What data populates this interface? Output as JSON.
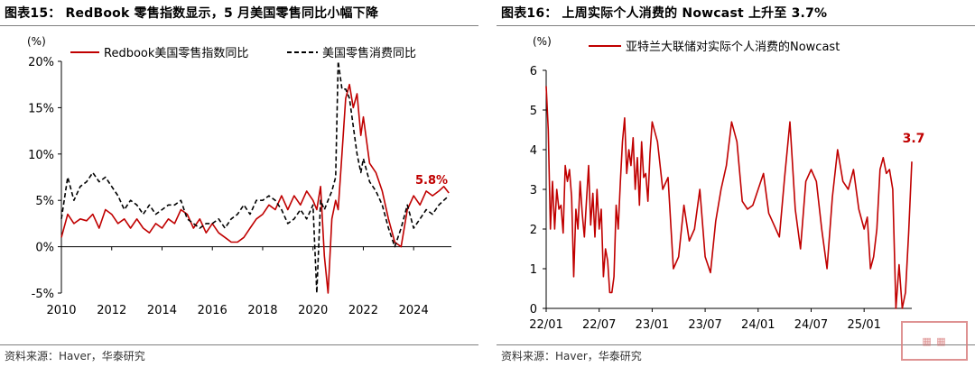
{
  "left": {
    "title": "图表15：  RedBook 零售指数显示，5 月美国零售同比小幅下降",
    "source": "资料来源：Haver，华泰研究"
  },
  "right": {
    "title": "图表16：  上周实际个人消费的 Nowcast 上升至 3.7%",
    "source": "资料来源：Haver，华泰研究"
  },
  "watermark_text": "慧博",
  "chart_data": [
    {
      "type": "line",
      "unit_label": "(%)",
      "ylim": [
        -5,
        20
      ],
      "yticks": [
        "-5%",
        "0%",
        "5%",
        "10%",
        "15%",
        "20%"
      ],
      "xlim": [
        2010,
        2025.5
      ],
      "xticks": [
        "2010",
        "2012",
        "2014",
        "2016",
        "2018",
        "2020",
        "2022",
        "2024"
      ],
      "legend_position": "top",
      "end_label": "5.8%",
      "colors": {
        "redbook": "#c00000",
        "retail": "#000000",
        "end_label": "#c00000"
      },
      "series": [
        {
          "name": "Redbook美国零售指数同比",
          "style": "solid",
          "x": [
            2010.0,
            2010.25,
            2010.5,
            2010.75,
            2011.0,
            2011.25,
            2011.5,
            2011.75,
            2012.0,
            2012.25,
            2012.5,
            2012.75,
            2013.0,
            2013.25,
            2013.5,
            2013.75,
            2014.0,
            2014.25,
            2014.5,
            2014.75,
            2015.0,
            2015.25,
            2015.5,
            2015.75,
            2016.0,
            2016.25,
            2016.5,
            2016.75,
            2017.0,
            2017.25,
            2017.5,
            2017.75,
            2018.0,
            2018.25,
            2018.5,
            2018.75,
            2019.0,
            2019.25,
            2019.5,
            2019.75,
            2020.0,
            2020.15,
            2020.3,
            2020.45,
            2020.6,
            2020.75,
            2020.9,
            2021.0,
            2021.15,
            2021.3,
            2021.45,
            2021.6,
            2021.75,
            2021.9,
            2022.0,
            2022.25,
            2022.5,
            2022.75,
            2023.0,
            2023.25,
            2023.5,
            2023.75,
            2024.0,
            2024.25,
            2024.5,
            2024.75,
            2025.0,
            2025.2,
            2025.4
          ],
          "values": [
            1.0,
            3.5,
            2.5,
            3.0,
            2.8,
            3.5,
            2.0,
            4.0,
            3.5,
            2.5,
            3.0,
            2.0,
            3.0,
            2.0,
            1.5,
            2.5,
            2.0,
            3.0,
            2.5,
            4.0,
            3.5,
            2.0,
            3.0,
            1.5,
            2.5,
            1.5,
            1.0,
            0.5,
            0.5,
            1.0,
            2.0,
            3.0,
            3.5,
            4.5,
            4.0,
            5.5,
            4.0,
            5.5,
            4.5,
            6.0,
            5.0,
            4.0,
            6.5,
            -1.0,
            -5.0,
            3.0,
            5.0,
            4.0,
            10.0,
            16.0,
            17.5,
            15.0,
            16.5,
            12.0,
            14.0,
            9.0,
            8.0,
            6.0,
            3.0,
            0.5,
            0.0,
            4.0,
            5.5,
            4.5,
            6.0,
            5.5,
            6.0,
            6.5,
            5.8
          ]
        },
        {
          "name": "美国零售消费同比",
          "style": "dashed",
          "x": [
            2010.0,
            2010.25,
            2010.5,
            2010.75,
            2011.0,
            2011.25,
            2011.5,
            2011.75,
            2012.0,
            2012.25,
            2012.5,
            2012.75,
            2013.0,
            2013.25,
            2013.5,
            2013.75,
            2014.0,
            2014.25,
            2014.5,
            2014.75,
            2015.0,
            2015.25,
            2015.5,
            2015.75,
            2016.0,
            2016.25,
            2016.5,
            2016.75,
            2017.0,
            2017.25,
            2017.5,
            2017.75,
            2018.0,
            2018.25,
            2018.5,
            2018.75,
            2019.0,
            2019.25,
            2019.5,
            2019.75,
            2020.0,
            2020.15,
            2020.3,
            2020.45,
            2020.6,
            2020.75,
            2020.9,
            2021.0,
            2021.15,
            2021.3,
            2021.45,
            2021.6,
            2021.75,
            2021.9,
            2022.0,
            2022.25,
            2022.5,
            2022.75,
            2023.0,
            2023.25,
            2023.5,
            2023.75,
            2024.0,
            2024.25,
            2024.5,
            2024.75,
            2025.0,
            2025.2,
            2025.4
          ],
          "values": [
            3.0,
            7.5,
            5.0,
            6.5,
            7.0,
            8.0,
            7.0,
            7.5,
            6.5,
            5.5,
            4.0,
            5.0,
            4.5,
            3.5,
            4.5,
            3.5,
            4.0,
            4.5,
            4.5,
            5.0,
            3.0,
            2.5,
            2.0,
            2.5,
            2.5,
            3.0,
            2.0,
            3.0,
            3.5,
            4.5,
            3.5,
            5.0,
            5.0,
            5.5,
            5.0,
            4.0,
            2.5,
            3.0,
            4.0,
            3.0,
            4.5,
            -5.0,
            5.0,
            4.0,
            5.0,
            6.0,
            7.5,
            20.0,
            17.0,
            17.0,
            16.0,
            13.0,
            10.0,
            8.0,
            9.5,
            7.0,
            6.0,
            4.5,
            2.0,
            0.0,
            2.0,
            4.5,
            2.0,
            3.0,
            4.0,
            3.5,
            4.5,
            5.0,
            5.5
          ]
        }
      ]
    },
    {
      "type": "line",
      "unit_label": "(%)",
      "ylim": [
        0,
        6
      ],
      "yticks": [
        "0",
        "1",
        "2",
        "3",
        "4",
        "5",
        "6"
      ],
      "xlim": [
        2022.0,
        2025.45
      ],
      "xticks": [
        "22/01",
        "22/07",
        "23/01",
        "23/07",
        "24/01",
        "24/07",
        "25/01"
      ],
      "legend_position": "top",
      "end_label": "3.7",
      "colors": {
        "nowcast": "#c00000",
        "end_label": "#c00000"
      },
      "series": [
        {
          "name": "亚特兰大联储对实际个人消费的Nowcast",
          "style": "solid",
          "x": [
            2022.0,
            2022.02,
            2022.04,
            2022.06,
            2022.08,
            2022.1,
            2022.12,
            2022.14,
            2022.16,
            2022.18,
            2022.2,
            2022.22,
            2022.24,
            2022.26,
            2022.28,
            2022.3,
            2022.32,
            2022.34,
            2022.36,
            2022.38,
            2022.4,
            2022.42,
            2022.44,
            2022.46,
            2022.48,
            2022.5,
            2022.52,
            2022.54,
            2022.56,
            2022.58,
            2022.6,
            2022.62,
            2022.64,
            2022.66,
            2022.68,
            2022.7,
            2022.72,
            2022.74,
            2022.76,
            2022.78,
            2022.8,
            2022.82,
            2022.84,
            2022.86,
            2022.88,
            2022.9,
            2022.92,
            2022.94,
            2022.96,
            2022.98,
            2023.0,
            2023.05,
            2023.1,
            2023.15,
            2023.2,
            2023.25,
            2023.3,
            2023.35,
            2023.4,
            2023.45,
            2023.5,
            2023.55,
            2023.6,
            2023.65,
            2023.7,
            2023.75,
            2023.8,
            2023.85,
            2023.9,
            2023.95,
            2024.0,
            2024.05,
            2024.1,
            2024.15,
            2024.2,
            2024.25,
            2024.3,
            2024.35,
            2024.4,
            2024.45,
            2024.5,
            2024.55,
            2024.6,
            2024.65,
            2024.7,
            2024.75,
            2024.8,
            2024.85,
            2024.9,
            2024.95,
            2025.0,
            2025.03,
            2025.06,
            2025.09,
            2025.12,
            2025.15,
            2025.18,
            2025.21,
            2025.24,
            2025.27,
            2025.3,
            2025.33,
            2025.36,
            2025.39,
            2025.42,
            2025.45
          ],
          "values": [
            5.6,
            4.5,
            2.0,
            3.2,
            2.0,
            3.0,
            2.5,
            2.6,
            1.9,
            3.6,
            3.2,
            3.5,
            2.8,
            0.8,
            2.5,
            2.0,
            3.2,
            2.4,
            1.8,
            2.7,
            3.6,
            2.1,
            2.9,
            1.8,
            3.0,
            2.0,
            2.5,
            0.8,
            1.5,
            1.2,
            0.4,
            0.4,
            0.8,
            2.6,
            2.0,
            3.2,
            4.2,
            4.8,
            3.4,
            4.0,
            3.6,
            4.3,
            3.0,
            3.8,
            2.6,
            4.2,
            3.3,
            3.4,
            2.7,
            3.9,
            4.7,
            4.2,
            3.0,
            3.3,
            1.0,
            1.3,
            2.6,
            1.7,
            2.0,
            3.0,
            1.3,
            0.9,
            2.2,
            3.0,
            3.6,
            4.7,
            4.2,
            2.7,
            2.5,
            2.6,
            3.0,
            3.4,
            2.4,
            2.1,
            1.8,
            3.3,
            4.7,
            2.5,
            1.5,
            3.2,
            3.5,
            3.2,
            2.0,
            1.0,
            2.8,
            4.0,
            3.2,
            3.0,
            3.5,
            2.5,
            2.0,
            2.3,
            1.0,
            1.3,
            2.0,
            3.5,
            3.8,
            3.4,
            3.5,
            3.0,
            0.0,
            1.1,
            0.0,
            0.4,
            1.9,
            3.7
          ]
        }
      ]
    }
  ]
}
